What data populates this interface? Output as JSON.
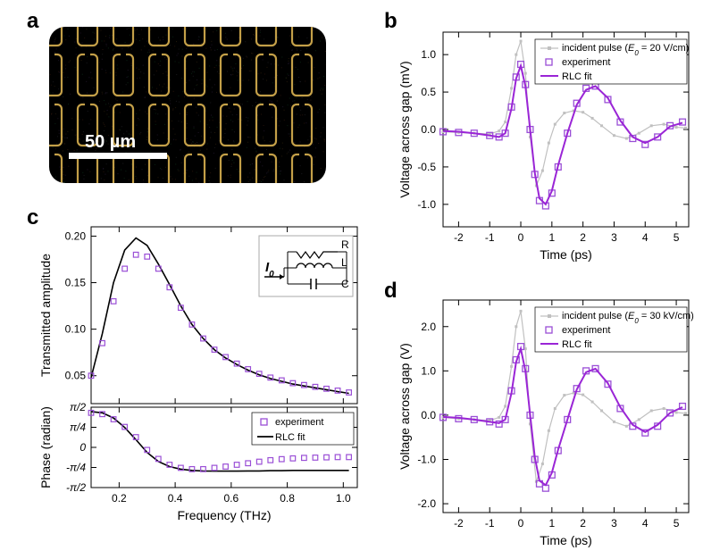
{
  "labels": {
    "a": "a",
    "b": "b",
    "c": "c",
    "d": "d"
  },
  "panel_a": {
    "bg": "#000000",
    "ring_color": "#d8b050",
    "scalebar_color": "#ffffff",
    "scalebar_text": "50 µm",
    "scalebar_fontsize": 20
  },
  "panel_c": {
    "xlabel": "Frequency (THz)",
    "ylabel_top": "Transmitted amplitude",
    "ylabel_bot": "Phase (radian)",
    "xlim": [
      0.1,
      1.05
    ],
    "xticks": [
      0.2,
      0.4,
      0.6,
      0.8,
      1.0
    ],
    "amp": {
      "ylim": [
        0.02,
        0.21
      ],
      "yticks": [
        0.05,
        0.1,
        0.15,
        0.2
      ],
      "exp": {
        "x": [
          0.1,
          0.14,
          0.18,
          0.22,
          0.26,
          0.3,
          0.34,
          0.38,
          0.42,
          0.46,
          0.5,
          0.54,
          0.58,
          0.62,
          0.66,
          0.7,
          0.74,
          0.78,
          0.82,
          0.86,
          0.9,
          0.94,
          0.98,
          1.02
        ],
        "y": [
          0.05,
          0.085,
          0.13,
          0.165,
          0.18,
          0.178,
          0.165,
          0.145,
          0.123,
          0.105,
          0.09,
          0.078,
          0.07,
          0.063,
          0.057,
          0.052,
          0.048,
          0.045,
          0.042,
          0.04,
          0.038,
          0.036,
          0.034,
          0.032
        ]
      },
      "fit": {
        "x": [
          0.1,
          0.14,
          0.18,
          0.22,
          0.26,
          0.3,
          0.34,
          0.38,
          0.42,
          0.46,
          0.5,
          0.54,
          0.58,
          0.62,
          0.66,
          0.7,
          0.74,
          0.78,
          0.82,
          0.86,
          0.9,
          0.94,
          0.98,
          1.02
        ],
        "y": [
          0.048,
          0.095,
          0.15,
          0.185,
          0.198,
          0.19,
          0.17,
          0.148,
          0.125,
          0.105,
          0.09,
          0.078,
          0.069,
          0.062,
          0.056,
          0.051,
          0.047,
          0.044,
          0.041,
          0.039,
          0.037,
          0.035,
          0.033,
          0.031
        ]
      }
    },
    "phase": {
      "ylim": [
        -1.5708,
        1.5708
      ],
      "yticks": [
        -1.5708,
        -0.7854,
        0,
        0.7854,
        1.5708
      ],
      "ytick_labels": [
        "-π/2",
        "-π/4",
        "0",
        "π/4",
        "π/2"
      ],
      "exp": {
        "x": [
          0.1,
          0.14,
          0.18,
          0.22,
          0.26,
          0.3,
          0.34,
          0.38,
          0.42,
          0.46,
          0.5,
          0.54,
          0.58,
          0.62,
          0.66,
          0.7,
          0.74,
          0.78,
          0.82,
          0.86,
          0.9,
          0.94,
          0.98,
          1.02
        ],
        "y": [
          1.35,
          1.3,
          1.1,
          0.8,
          0.4,
          -0.1,
          -0.45,
          -0.68,
          -0.8,
          -0.85,
          -0.85,
          -0.8,
          -0.75,
          -0.68,
          -0.62,
          -0.56,
          -0.5,
          -0.46,
          -0.43,
          -0.41,
          -0.4,
          -0.39,
          -0.38,
          -0.38
        ]
      },
      "fit": {
        "x": [
          0.1,
          0.14,
          0.18,
          0.22,
          0.26,
          0.3,
          0.34,
          0.38,
          0.42,
          0.46,
          0.5,
          0.54,
          0.58,
          0.62,
          0.66,
          0.7,
          0.74,
          0.78,
          0.82,
          0.86,
          0.9,
          0.94,
          0.98,
          1.02
        ],
        "y": [
          1.4,
          1.35,
          1.15,
          0.78,
          0.3,
          -0.2,
          -0.55,
          -0.75,
          -0.85,
          -0.9,
          -0.92,
          -0.93,
          -0.93,
          -0.93,
          -0.92,
          -0.92,
          -0.91,
          -0.91,
          -0.9,
          -0.9,
          -0.9,
          -0.9,
          -0.9,
          -0.9
        ]
      }
    },
    "legend": {
      "exp": "experiment",
      "fit": "RLC fit"
    },
    "inset": {
      "I0": "I",
      "I0_sub": "0",
      "R": "R",
      "L": "L",
      "C": "C"
    }
  },
  "panel_b": {
    "xlabel": "Time (ps)",
    "ylabel": "Voltage across gap (mV)",
    "xlim": [
      -2.5,
      5.4
    ],
    "xticks": [
      -2,
      -1,
      0,
      1,
      2,
      3,
      4,
      5
    ],
    "ylim": [
      -1.3,
      1.3
    ],
    "yticks": [
      -1.0,
      -0.5,
      0.0,
      0.5,
      1.0
    ],
    "legend": {
      "inc": "incident pulse (",
      "inc_E": "E",
      "inc_sub": "0",
      "inc_rest": " = 20 V/cm)",
      "exp": "experiment",
      "fit": "RLC fit"
    },
    "incident": {
      "x": [
        -2.5,
        -2.0,
        -1.5,
        -1.0,
        -0.7,
        -0.5,
        -0.3,
        -0.15,
        0.0,
        0.15,
        0.3,
        0.5,
        0.7,
        0.9,
        1.1,
        1.4,
        1.7,
        2.0,
        2.3,
        2.6,
        3.0,
        3.4,
        3.8,
        4.2,
        4.6,
        5.0,
        5.3
      ],
      "y": [
        -0.03,
        -0.04,
        -0.05,
        -0.06,
        -0.02,
        0.1,
        0.55,
        1.0,
        1.18,
        0.75,
        -0.1,
        -0.75,
        -0.55,
        -0.18,
        0.07,
        0.22,
        0.25,
        0.23,
        0.15,
        0.05,
        -0.08,
        -0.12,
        -0.05,
        0.05,
        0.07,
        0.03,
        0.02
      ]
    },
    "exp": {
      "x": [
        -2.5,
        -2.0,
        -1.5,
        -1.0,
        -0.7,
        -0.5,
        -0.3,
        -0.15,
        0.0,
        0.15,
        0.3,
        0.45,
        0.6,
        0.8,
        1.0,
        1.2,
        1.5,
        1.8,
        2.1,
        2.4,
        2.8,
        3.2,
        3.6,
        4.0,
        4.4,
        4.8,
        5.2
      ],
      "y": [
        -0.03,
        -0.04,
        -0.05,
        -0.08,
        -0.1,
        -0.05,
        0.3,
        0.7,
        0.87,
        0.6,
        0.0,
        -0.6,
        -0.95,
        -1.02,
        -0.85,
        -0.5,
        -0.05,
        0.35,
        0.55,
        0.58,
        0.4,
        0.1,
        -0.12,
        -0.2,
        -0.1,
        0.05,
        0.1
      ]
    },
    "fit": {
      "x": [
        -2.5,
        -2.0,
        -1.5,
        -1.0,
        -0.7,
        -0.5,
        -0.3,
        -0.15,
        0.0,
        0.15,
        0.3,
        0.45,
        0.6,
        0.8,
        1.0,
        1.2,
        1.5,
        1.8,
        2.1,
        2.4,
        2.8,
        3.2,
        3.6,
        4.0,
        4.4,
        4.8,
        5.2
      ],
      "y": [
        -0.02,
        -0.03,
        -0.05,
        -0.08,
        -0.1,
        -0.05,
        0.28,
        0.68,
        0.85,
        0.58,
        0.0,
        -0.58,
        -0.92,
        -1.0,
        -0.82,
        -0.48,
        -0.05,
        0.33,
        0.53,
        0.58,
        0.42,
        0.12,
        -0.1,
        -0.18,
        -0.1,
        0.04,
        0.09
      ]
    }
  },
  "panel_d": {
    "xlabel": "Time (ps)",
    "ylabel": "Voltage across gap (V)",
    "xlim": [
      -2.5,
      5.4
    ],
    "xticks": [
      -2,
      -1,
      0,
      1,
      2,
      3,
      4,
      5
    ],
    "ylim": [
      -2.2,
      2.6
    ],
    "yticks": [
      -2,
      -1,
      0,
      1,
      2
    ],
    "legend": {
      "inc": "incident pulse (",
      "inc_E": "E",
      "inc_sub": "0",
      "inc_rest": " = 30 kV/cm)",
      "exp": "experiment",
      "fit": "RLC fit"
    },
    "incident": {
      "x": [
        -2.5,
        -2.0,
        -1.5,
        -1.0,
        -0.7,
        -0.5,
        -0.3,
        -0.15,
        0.0,
        0.15,
        0.3,
        0.5,
        0.7,
        0.9,
        1.1,
        1.4,
        1.7,
        2.0,
        2.3,
        2.6,
        3.0,
        3.4,
        3.8,
        4.2,
        4.6,
        5.0,
        5.3
      ],
      "y": [
        -0.05,
        -0.08,
        -0.1,
        -0.12,
        -0.05,
        0.2,
        1.1,
        2.0,
        2.35,
        1.5,
        -0.2,
        -1.5,
        -1.1,
        -0.35,
        0.15,
        0.45,
        0.5,
        0.46,
        0.3,
        0.1,
        -0.15,
        -0.25,
        -0.1,
        0.1,
        0.15,
        0.06,
        0.04
      ]
    },
    "exp": {
      "x": [
        -2.5,
        -2.0,
        -1.5,
        -1.0,
        -0.7,
        -0.5,
        -0.3,
        -0.15,
        0.0,
        0.15,
        0.3,
        0.45,
        0.6,
        0.8,
        1.0,
        1.2,
        1.5,
        1.8,
        2.1,
        2.4,
        2.8,
        3.2,
        3.6,
        4.0,
        4.4,
        4.8,
        5.2
      ],
      "y": [
        -0.05,
        -0.08,
        -0.1,
        -0.15,
        -0.2,
        -0.1,
        0.55,
        1.25,
        1.55,
        1.05,
        0.0,
        -1.0,
        -1.55,
        -1.65,
        -1.35,
        -0.8,
        -0.1,
        0.6,
        1.0,
        1.05,
        0.7,
        0.15,
        -0.25,
        -0.4,
        -0.25,
        0.05,
        0.2
      ]
    },
    "fit": {
      "x": [
        -2.5,
        -2.0,
        -1.5,
        -1.0,
        -0.7,
        -0.5,
        -0.3,
        -0.15,
        0.0,
        0.15,
        0.3,
        0.45,
        0.6,
        0.8,
        1.0,
        1.2,
        1.5,
        1.8,
        2.1,
        2.4,
        2.8,
        3.2,
        3.6,
        4.0,
        4.4,
        4.8,
        5.2
      ],
      "y": [
        -0.04,
        -0.06,
        -0.1,
        -0.15,
        -0.18,
        -0.1,
        0.5,
        1.2,
        1.5,
        1.0,
        0.0,
        -0.95,
        -1.48,
        -1.58,
        -1.3,
        -0.78,
        -0.1,
        0.58,
        0.97,
        1.05,
        0.72,
        0.18,
        -0.22,
        -0.38,
        -0.22,
        0.05,
        0.18
      ]
    }
  },
  "colors": {
    "exp_marker": "#9a4fd6",
    "fit_line": "#9a25d6",
    "incident": "#c0c0c0",
    "axis": "#000000",
    "grid": "#e0e0e0",
    "fit_black": "#000000"
  },
  "marker_size": 3.4,
  "line_width": 2
}
